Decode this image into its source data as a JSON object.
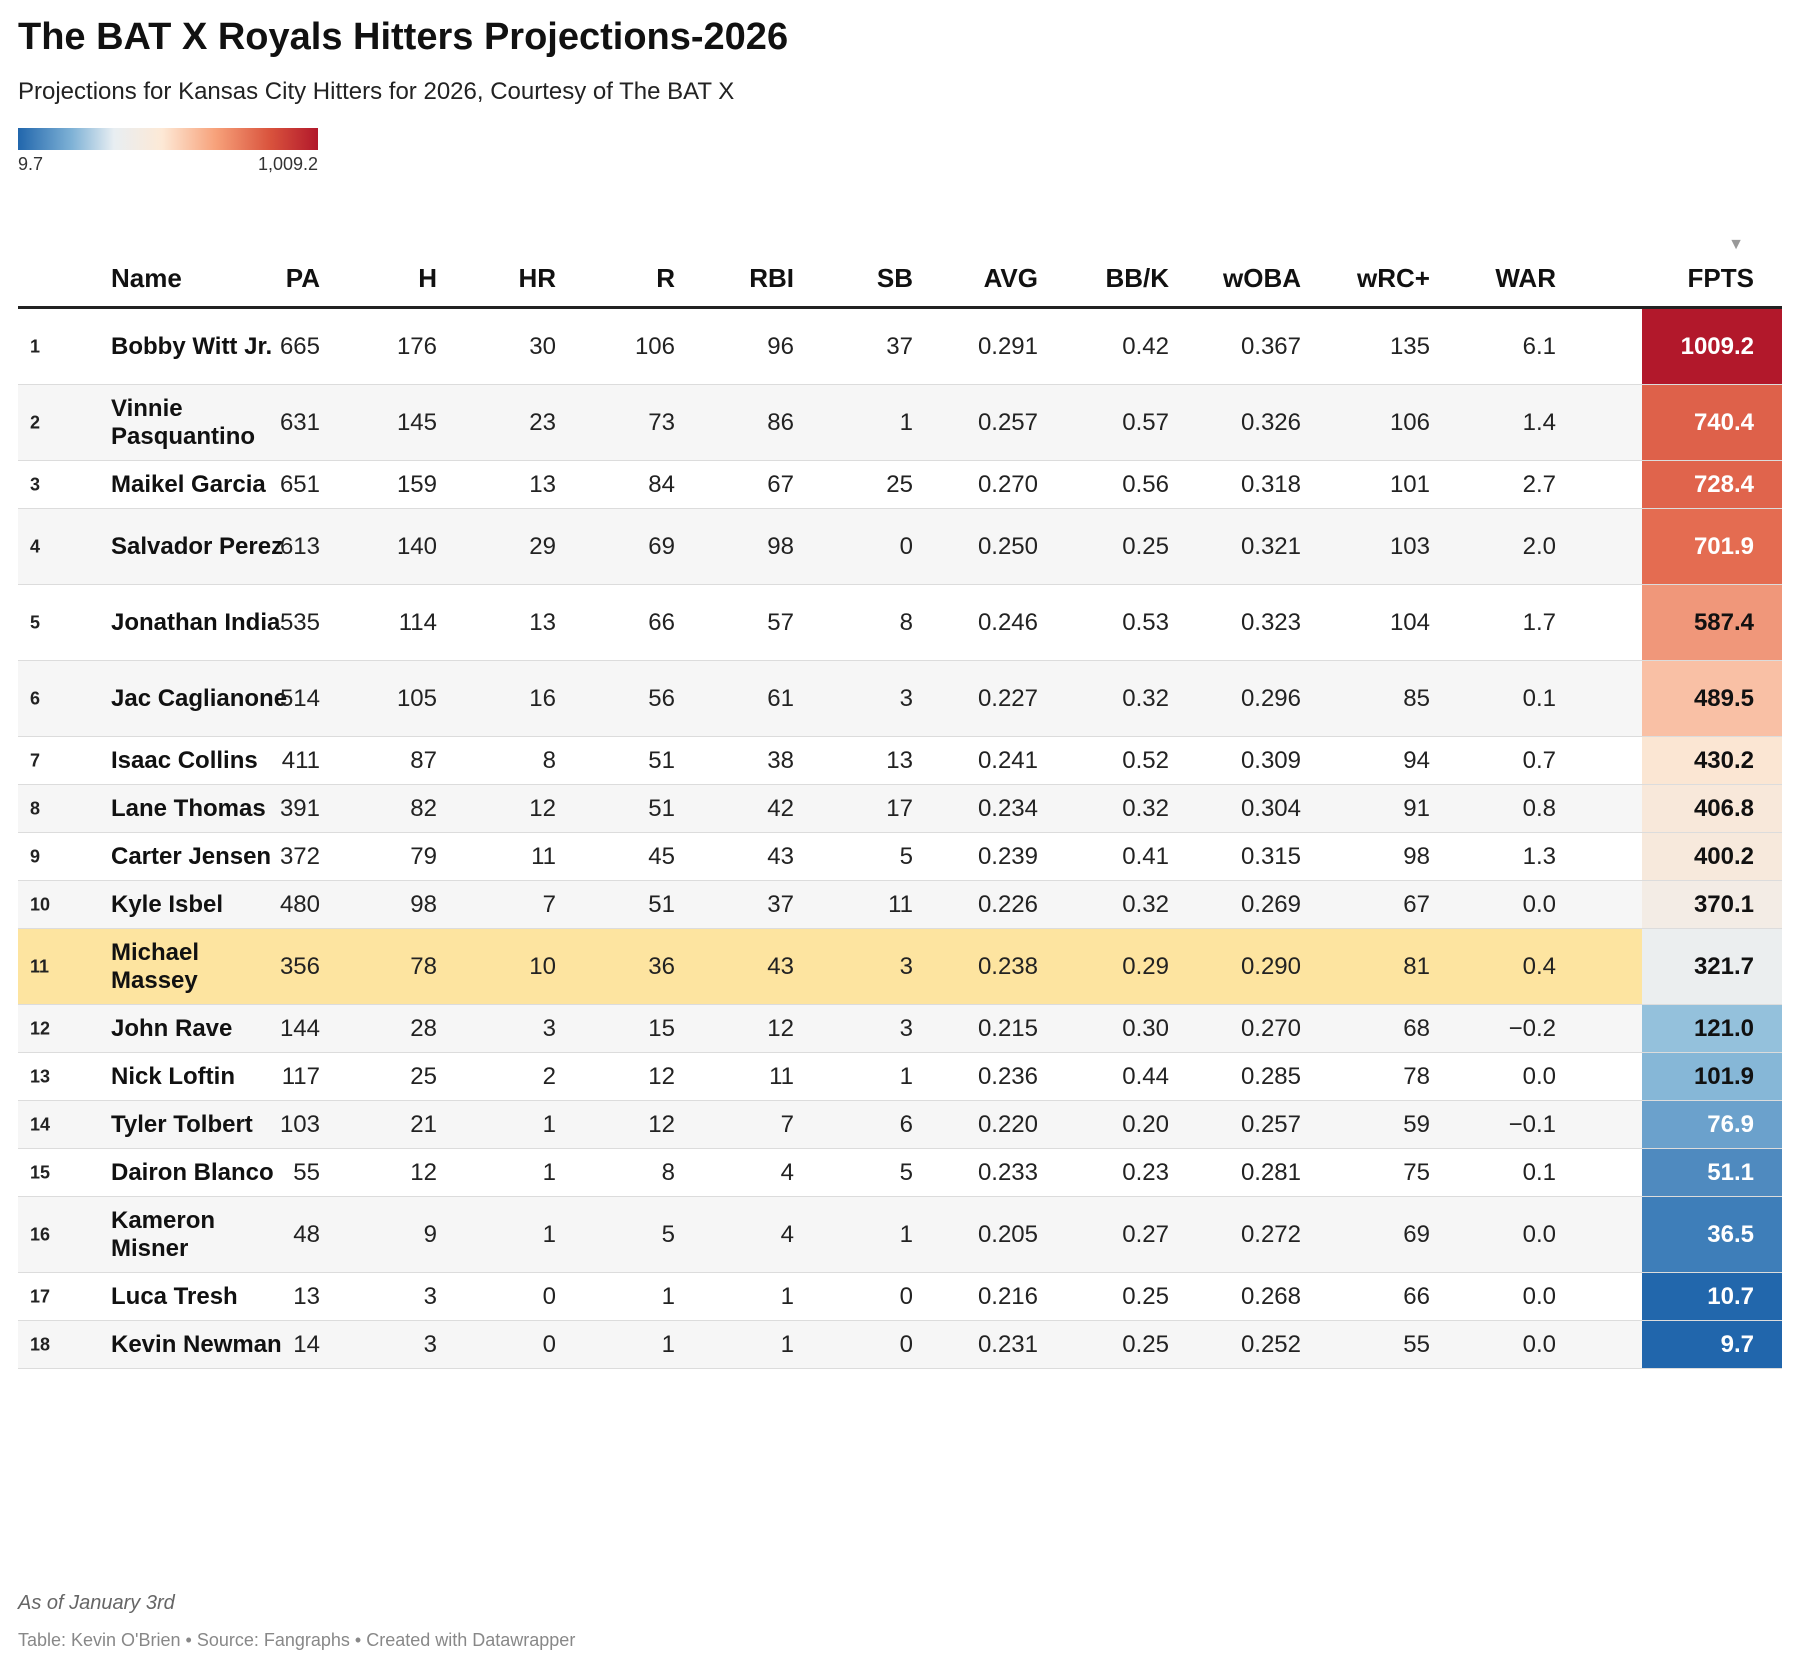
{
  "header": {
    "title": "The BAT X Royals Hitters Projections-2026",
    "subtitle": "Projections for Kansas City Hitters for 2026, Courtesy of The BAT X"
  },
  "legend": {
    "min_label": "9.7",
    "max_label": "1,009.2",
    "min": 9.7,
    "max": 1009.2
  },
  "colors": {
    "high": "#b2182b",
    "mid": "#f0f0f0",
    "low": "#2166ac",
    "highlight_row": "#fde4a0"
  },
  "chart_data": {
    "type": "table",
    "columns": [
      "Name",
      "PA",
      "H",
      "HR",
      "R",
      "RBI",
      "SB",
      "AVG",
      "BB/K",
      "wOBA",
      "wRC+",
      "WAR",
      "FPTS"
    ],
    "sorted_by": "FPTS",
    "highlighted_rank": 11,
    "rows": [
      {
        "rank": "1",
        "name": "Bobby Witt Jr.",
        "PA": "665",
        "H": "176",
        "HR": "30",
        "R": "106",
        "RBI": "96",
        "SB": "37",
        "AVG": "0.291",
        "BBK": "0.42",
        "wOBA": "0.367",
        "wRC": "135",
        "WAR": "6.1",
        "FPTS": "1009.2",
        "fpts_value": 1009.2
      },
      {
        "rank": "2",
        "name": "Vinnie Pasquantino",
        "PA": "631",
        "H": "145",
        "HR": "23",
        "R": "73",
        "RBI": "86",
        "SB": "1",
        "AVG": "0.257",
        "BBK": "0.57",
        "wOBA": "0.326",
        "wRC": "106",
        "WAR": "1.4",
        "FPTS": "740.4",
        "fpts_value": 740.4
      },
      {
        "rank": "3",
        "name": "Maikel Garcia",
        "PA": "651",
        "H": "159",
        "HR": "13",
        "R": "84",
        "RBI": "67",
        "SB": "25",
        "AVG": "0.270",
        "BBK": "0.56",
        "wOBA": "0.318",
        "wRC": "101",
        "WAR": "2.7",
        "FPTS": "728.4",
        "fpts_value": 728.4
      },
      {
        "rank": "4",
        "name": "Salvador Perez",
        "PA": "613",
        "H": "140",
        "HR": "29",
        "R": "69",
        "RBI": "98",
        "SB": "0",
        "AVG": "0.250",
        "BBK": "0.25",
        "wOBA": "0.321",
        "wRC": "103",
        "WAR": "2.0",
        "FPTS": "701.9",
        "fpts_value": 701.9
      },
      {
        "rank": "5",
        "name": "Jonathan India",
        "PA": "535",
        "H": "114",
        "HR": "13",
        "R": "66",
        "RBI": "57",
        "SB": "8",
        "AVG": "0.246",
        "BBK": "0.53",
        "wOBA": "0.323",
        "wRC": "104",
        "WAR": "1.7",
        "FPTS": "587.4",
        "fpts_value": 587.4
      },
      {
        "rank": "6",
        "name": "Jac Caglianone",
        "PA": "514",
        "H": "105",
        "HR": "16",
        "R": "56",
        "RBI": "61",
        "SB": "3",
        "AVG": "0.227",
        "BBK": "0.32",
        "wOBA": "0.296",
        "wRC": "85",
        "WAR": "0.1",
        "FPTS": "489.5",
        "fpts_value": 489.5
      },
      {
        "rank": "7",
        "name": "Isaac Collins",
        "PA": "411",
        "H": "87",
        "HR": "8",
        "R": "51",
        "RBI": "38",
        "SB": "13",
        "AVG": "0.241",
        "BBK": "0.52",
        "wOBA": "0.309",
        "wRC": "94",
        "WAR": "0.7",
        "FPTS": "430.2",
        "fpts_value": 430.2
      },
      {
        "rank": "8",
        "name": "Lane Thomas",
        "PA": "391",
        "H": "82",
        "HR": "12",
        "R": "51",
        "RBI": "42",
        "SB": "17",
        "AVG": "0.234",
        "BBK": "0.32",
        "wOBA": "0.304",
        "wRC": "91",
        "WAR": "0.8",
        "FPTS": "406.8",
        "fpts_value": 406.8
      },
      {
        "rank": "9",
        "name": "Carter Jensen",
        "PA": "372",
        "H": "79",
        "HR": "11",
        "R": "45",
        "RBI": "43",
        "SB": "5",
        "AVG": "0.239",
        "BBK": "0.41",
        "wOBA": "0.315",
        "wRC": "98",
        "WAR": "1.3",
        "FPTS": "400.2",
        "fpts_value": 400.2
      },
      {
        "rank": "10",
        "name": "Kyle Isbel",
        "PA": "480",
        "H": "98",
        "HR": "7",
        "R": "51",
        "RBI": "37",
        "SB": "11",
        "AVG": "0.226",
        "BBK": "0.32",
        "wOBA": "0.269",
        "wRC": "67",
        "WAR": "0.0",
        "FPTS": "370.1",
        "fpts_value": 370.1
      },
      {
        "rank": "11",
        "name": "Michael Massey",
        "PA": "356",
        "H": "78",
        "HR": "10",
        "R": "36",
        "RBI": "43",
        "SB": "3",
        "AVG": "0.238",
        "BBK": "0.29",
        "wOBA": "0.290",
        "wRC": "81",
        "WAR": "0.4",
        "FPTS": "321.7",
        "fpts_value": 321.7
      },
      {
        "rank": "12",
        "name": "John Rave",
        "PA": "144",
        "H": "28",
        "HR": "3",
        "R": "15",
        "RBI": "12",
        "SB": "3",
        "AVG": "0.215",
        "BBK": "0.30",
        "wOBA": "0.270",
        "wRC": "68",
        "WAR": "−0.2",
        "FPTS": "121.0",
        "fpts_value": 121.0
      },
      {
        "rank": "13",
        "name": "Nick Loftin",
        "PA": "117",
        "H": "25",
        "HR": "2",
        "R": "12",
        "RBI": "11",
        "SB": "1",
        "AVG": "0.236",
        "BBK": "0.44",
        "wOBA": "0.285",
        "wRC": "78",
        "WAR": "0.0",
        "FPTS": "101.9",
        "fpts_value": 101.9
      },
      {
        "rank": "14",
        "name": "Tyler Tolbert",
        "PA": "103",
        "H": "21",
        "HR": "1",
        "R": "12",
        "RBI": "7",
        "SB": "6",
        "AVG": "0.220",
        "BBK": "0.20",
        "wOBA": "0.257",
        "wRC": "59",
        "WAR": "−0.1",
        "FPTS": "76.9",
        "fpts_value": 76.9
      },
      {
        "rank": "15",
        "name": "Dairon Blanco",
        "PA": "55",
        "H": "12",
        "HR": "1",
        "R": "8",
        "RBI": "4",
        "SB": "5",
        "AVG": "0.233",
        "BBK": "0.23",
        "wOBA": "0.281",
        "wRC": "75",
        "WAR": "0.1",
        "FPTS": "51.1",
        "fpts_value": 51.1
      },
      {
        "rank": "16",
        "name": "Kameron Misner",
        "PA": "48",
        "H": "9",
        "HR": "1",
        "R": "5",
        "RBI": "4",
        "SB": "1",
        "AVG": "0.205",
        "BBK": "0.27",
        "wOBA": "0.272",
        "wRC": "69",
        "WAR": "0.0",
        "FPTS": "36.5",
        "fpts_value": 36.5
      },
      {
        "rank": "17",
        "name": "Luca Tresh",
        "PA": "13",
        "H": "3",
        "HR": "0",
        "R": "1",
        "RBI": "1",
        "SB": "0",
        "AVG": "0.216",
        "BBK": "0.25",
        "wOBA": "0.268",
        "wRC": "66",
        "WAR": "0.0",
        "FPTS": "10.7",
        "fpts_value": 10.7
      },
      {
        "rank": "18",
        "name": "Kevin Newman",
        "PA": "14",
        "H": "3",
        "HR": "0",
        "R": "1",
        "RBI": "1",
        "SB": "0",
        "AVG": "0.231",
        "BBK": "0.25",
        "wOBA": "0.252",
        "wRC": "55",
        "WAR": "0.0",
        "FPTS": "9.7",
        "fpts_value": 9.7
      }
    ]
  },
  "footer": {
    "note": "As of January 3rd",
    "source": "Table: Kevin O'Brien • Source: Fangraphs • Created with Datawrapper"
  }
}
